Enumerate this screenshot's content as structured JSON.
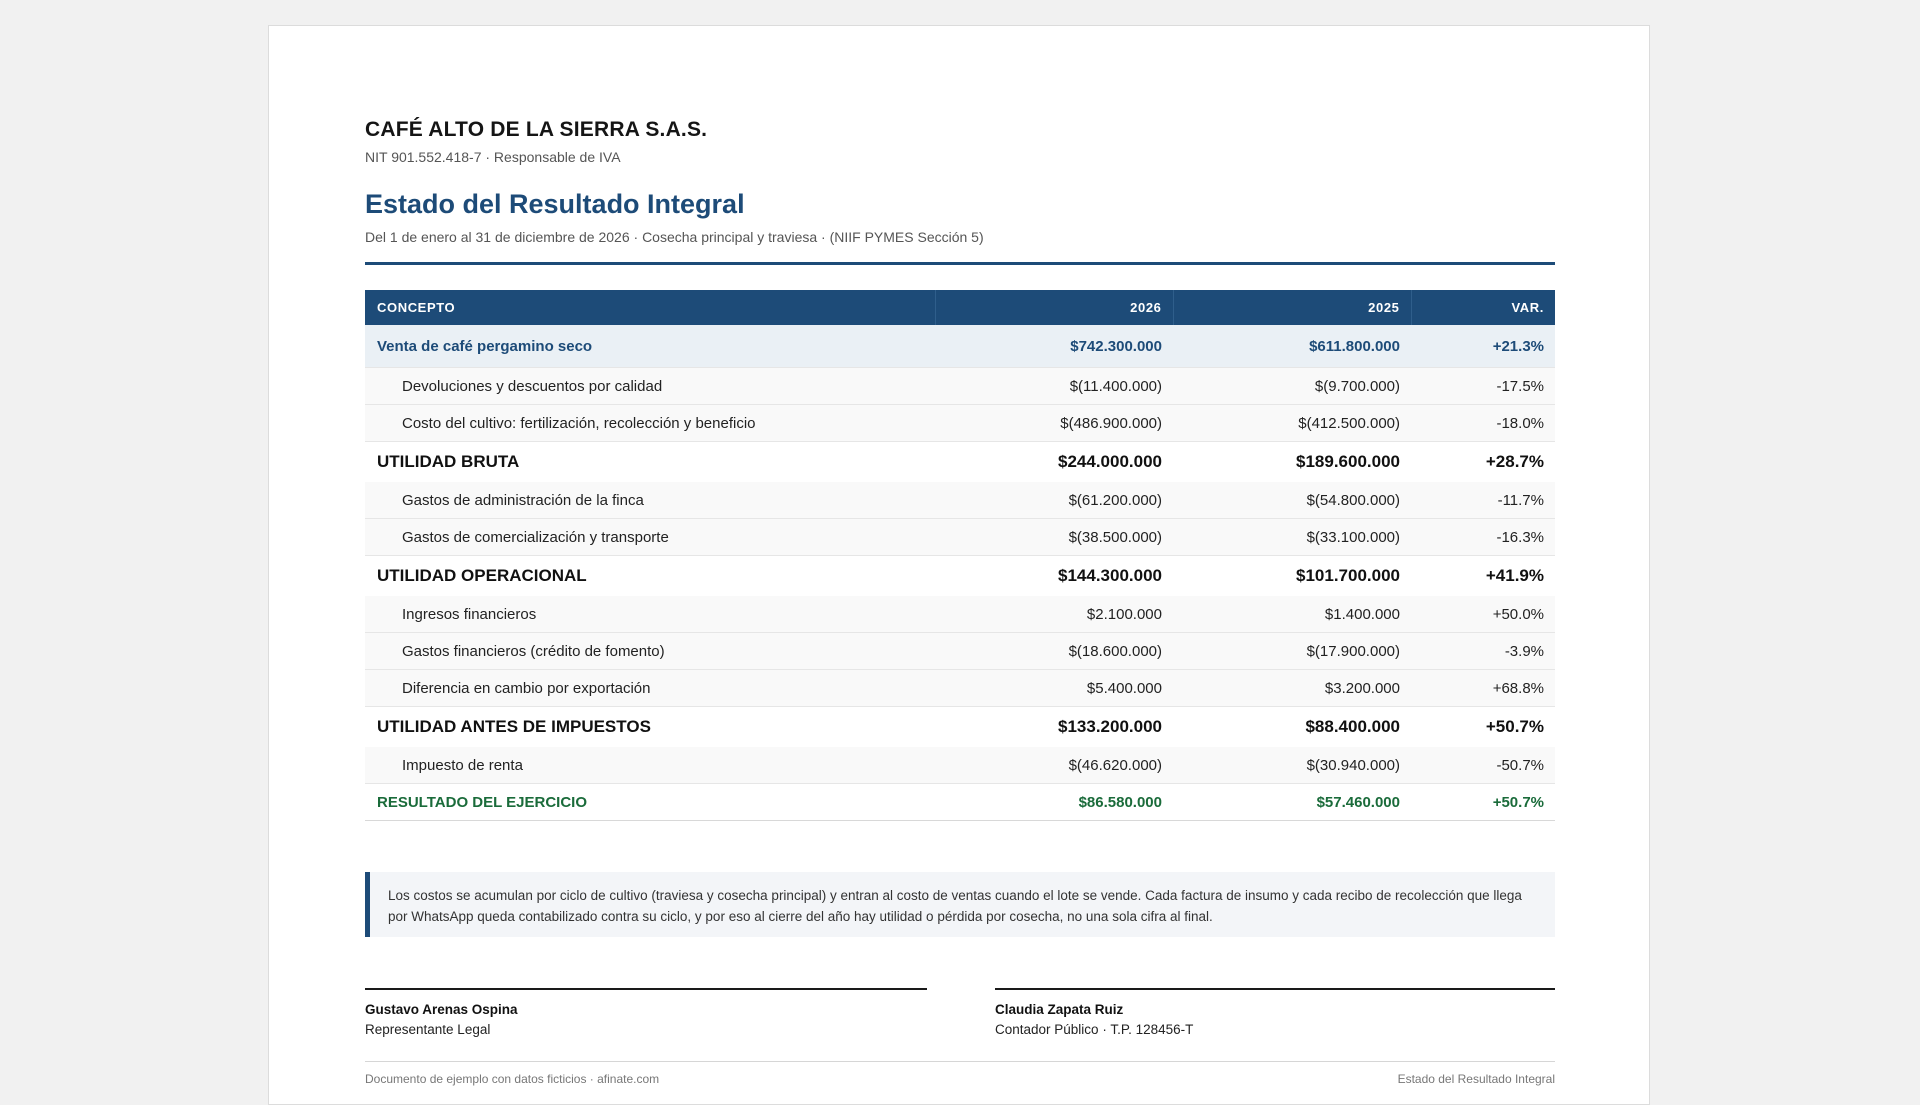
{
  "company": {
    "name": "CAFÉ ALTO DE LA SIERRA S.A.S.",
    "nit": "NIT 901.552.418-7 · Responsable de IVA"
  },
  "document": {
    "title": "Estado del Resultado Integral",
    "subtitle": "Del 1 de enero al 31 de diciembre de 2026 · Cosecha principal y traviesa · (NIIF PYMES Sección 5)"
  },
  "table": {
    "headers": [
      "CONCEPTO",
      "2026",
      "2025",
      "VAR."
    ],
    "rows": [
      {
        "type": "revenue",
        "concept": "Venta de café pergamino seco",
        "y2026": "$742.300.000",
        "y2025": "$611.800.000",
        "var": "+21.3%"
      },
      {
        "type": "detail",
        "concept": "Devoluciones y descuentos por calidad",
        "y2026": "$(11.400.000)",
        "y2025": "$(9.700.000)",
        "var": "-17.5%"
      },
      {
        "type": "detail",
        "concept": "Costo del cultivo: fertilización, recolección y beneficio",
        "y2026": "$(486.900.000)",
        "y2025": "$(412.500.000)",
        "var": "-18.0%"
      },
      {
        "type": "subtotal",
        "concept": "UTILIDAD BRUTA",
        "y2026": "$244.000.000",
        "y2025": "$189.600.000",
        "var": "+28.7%"
      },
      {
        "type": "detail",
        "concept": "Gastos de administración de la finca",
        "y2026": "$(61.200.000)",
        "y2025": "$(54.800.000)",
        "var": "-11.7%"
      },
      {
        "type": "detail",
        "concept": "Gastos de comercialización y transporte",
        "y2026": "$(38.500.000)",
        "y2025": "$(33.100.000)",
        "var": "-16.3%"
      },
      {
        "type": "subtotal",
        "concept": "UTILIDAD OPERACIONAL",
        "y2026": "$144.300.000",
        "y2025": "$101.700.000",
        "var": "+41.9%"
      },
      {
        "type": "detail",
        "concept": "Ingresos financieros",
        "y2026": "$2.100.000",
        "y2025": "$1.400.000",
        "var": "+50.0%"
      },
      {
        "type": "detail",
        "concept": "Gastos financieros (crédito de fomento)",
        "y2026": "$(18.600.000)",
        "y2025": "$(17.900.000)",
        "var": "-3.9%"
      },
      {
        "type": "detail",
        "concept": "Diferencia en cambio por exportación",
        "y2026": "$5.400.000",
        "y2025": "$3.200.000",
        "var": "+68.8%"
      },
      {
        "type": "subtotal",
        "concept": "UTILIDAD ANTES DE IMPUESTOS",
        "y2026": "$133.200.000",
        "y2025": "$88.400.000",
        "var": "+50.7%"
      },
      {
        "type": "detail",
        "concept": "Impuesto de renta",
        "y2026": "$(46.620.000)",
        "y2025": "$(30.940.000)",
        "var": "-50.7%"
      },
      {
        "type": "result",
        "concept": "RESULTADO DEL EJERCICIO",
        "y2026": "$86.580.000",
        "y2025": "$57.460.000",
        "var": "+50.7%"
      }
    ]
  },
  "note": "Los costos se acumulan por ciclo de cultivo (traviesa y cosecha principal) y entran al costo de ventas cuando el lote se vende. Cada factura de insumo y cada recibo de recolección que llega por WhatsApp queda contabilizado contra su ciclo, y por eso al cierre del año hay utilidad o pérdida por cosecha, no una sola cifra al final.",
  "signatures": [
    {
      "name": "Gustavo Arenas Ospina",
      "role": "Representante Legal"
    },
    {
      "name": "Claudia Zapata Ruiz",
      "role": "Contador Público · T.P. 128456-T"
    }
  ],
  "footer": {
    "left": "Documento de ejemplo con datos ficticios · afinate.com",
    "right": "Estado del Resultado Integral"
  },
  "colors": {
    "accent": "#1d4b78",
    "result_green": "#1a6b3a",
    "revenue_row_bg": "#eaf0f5"
  }
}
